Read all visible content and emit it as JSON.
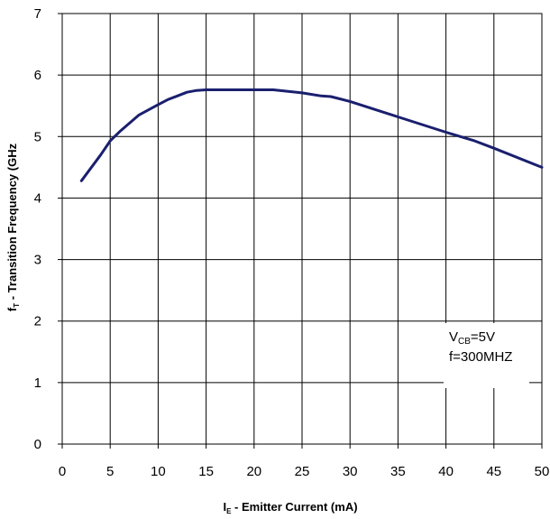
{
  "chart_data": {
    "type": "line",
    "xlabel": {
      "main": "I",
      "sub": "E",
      "rest": " - Emitter Current (mA)"
    },
    "ylabel": {
      "main": "f",
      "sub": "T",
      "rest": " - Transition Frequency (GHz"
    },
    "xlim": [
      0,
      50
    ],
    "ylim": [
      0,
      7
    ],
    "xticks": [
      0,
      5,
      10,
      15,
      20,
      25,
      30,
      35,
      40,
      45,
      50
    ],
    "yticks": [
      0,
      1,
      2,
      3,
      4,
      5,
      6,
      7
    ],
    "grid": true,
    "line_color": "#1a1f6e",
    "series": [
      {
        "x": [
          2,
          4,
          5,
          6,
          8,
          10,
          11,
          12,
          13,
          14,
          15,
          18,
          20,
          22,
          25,
          27,
          28,
          30,
          35,
          40,
          43,
          45,
          50
        ],
        "y": [
          4.28,
          4.7,
          4.93,
          5.08,
          5.35,
          5.52,
          5.6,
          5.66,
          5.72,
          5.75,
          5.76,
          5.76,
          5.76,
          5.76,
          5.71,
          5.66,
          5.65,
          5.57,
          5.32,
          5.07,
          4.93,
          4.81,
          4.5
        ]
      }
    ],
    "annotations": [
      {
        "main": "V",
        "sub": "CB",
        "rest": "=5V"
      },
      {
        "main": "f=300MHZ"
      }
    ]
  }
}
